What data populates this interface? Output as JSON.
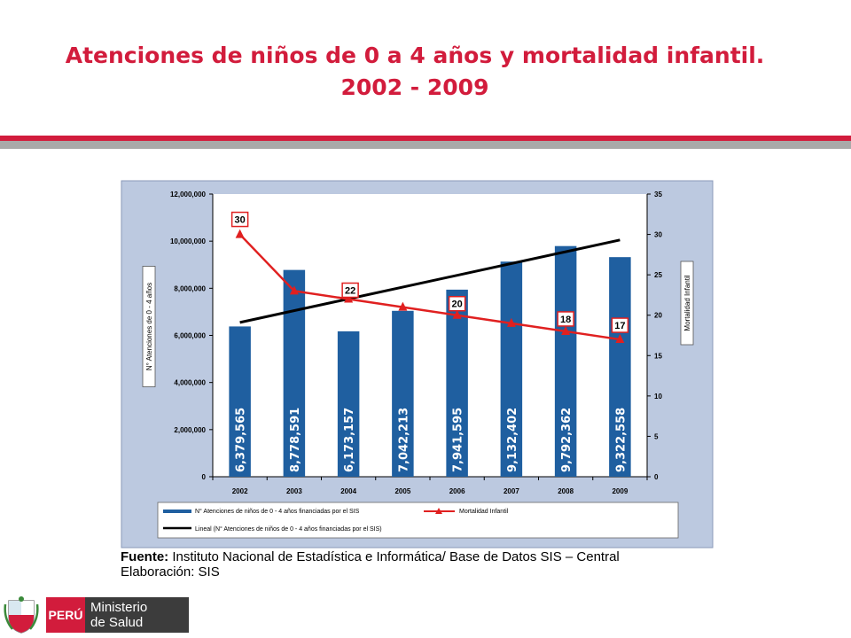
{
  "header": {
    "title_line1": "Atenciones de niños de 0 a 4 años y mortalidad infantil.",
    "title_line2": "2002 - 2009"
  },
  "colors": {
    "title_red": "#d21c3c",
    "bar_blue": "#1f5fa0",
    "mortality_red": "#e02020",
    "trend_black": "#000000",
    "plot_bg": "#ffffff",
    "frame_bg": "#bcc9e0"
  },
  "chart_data": {
    "type": "bar",
    "categories": [
      "2002",
      "2003",
      "2004",
      "2005",
      "2006",
      "2007",
      "2008",
      "2009"
    ],
    "series": [
      {
        "name": "N° Atenciones de niños de 0 - 4 años financiadas por el SIS",
        "axis": "left",
        "values": [
          6379565,
          8778591,
          6173157,
          7042213,
          7941595,
          9132402,
          9792362,
          9322558
        ],
        "value_labels": [
          "6,379,565",
          "8,778,591",
          "6,173,157",
          "7,042,213",
          "7,941,595",
          "9,132,402",
          "9,792,362",
          "9,322,558"
        ]
      },
      {
        "name": "Mortalidad Infantil",
        "axis": "right",
        "type": "line",
        "values": [
          30,
          23,
          22,
          21,
          20,
          19,
          18,
          17
        ],
        "value_labels": [
          "30",
          "",
          "22",
          "",
          "20",
          "",
          "18",
          "17"
        ]
      },
      {
        "name": "Lineal (N° Atenciones de niños de 0 - 4 años financiadas por el SIS)",
        "axis": "left",
        "type": "line",
        "values": [
          6550000,
          7050000,
          7550000,
          8050000,
          8550000,
          9050000,
          9550000,
          10050000
        ]
      }
    ],
    "ylabel": "N° Atenciones de 0 - 4 años",
    "y2label": "Mortalidad Infantil",
    "ylim": [
      0,
      12000000
    ],
    "y2lim": [
      0,
      35
    ],
    "yticks": [
      "0",
      "2,000,000",
      "4,000,000",
      "6,000,000",
      "8,000,000",
      "10,000,000",
      "12,000,000"
    ],
    "y2ticks": [
      "0",
      "5",
      "10",
      "15",
      "20",
      "25",
      "30",
      "35"
    ],
    "grid": false,
    "legend_position": "bottom"
  },
  "footer": {
    "source_label": "Fuente:",
    "source_text": " Instituto Nacional de Estadística e Informática/ Base de Datos SIS – Central",
    "prepared_text": "Elaboración: SIS",
    "logo_country": "PERÚ",
    "logo_ministry_line1": "Ministerio",
    "logo_ministry_line2": "de Salud"
  }
}
